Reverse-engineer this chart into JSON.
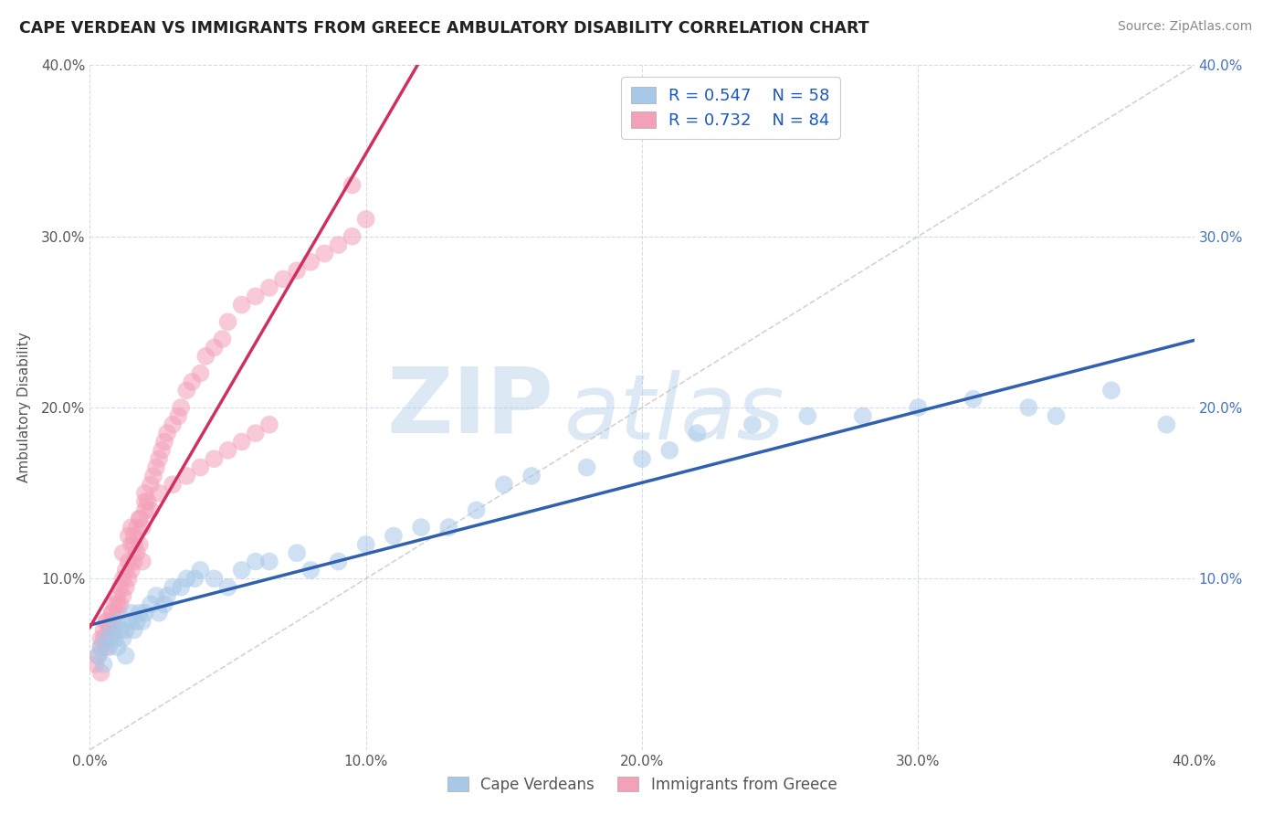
{
  "title": "CAPE VERDEAN VS IMMIGRANTS FROM GREECE AMBULATORY DISABILITY CORRELATION CHART",
  "source": "Source: ZipAtlas.com",
  "ylabel": "Ambulatory Disability",
  "xmin": 0.0,
  "xmax": 0.4,
  "ymin": 0.0,
  "ymax": 0.4,
  "xticks": [
    0.0,
    0.1,
    0.2,
    0.3,
    0.4
  ],
  "yticks": [
    0.0,
    0.1,
    0.2,
    0.3,
    0.4
  ],
  "xtick_labels": [
    "0.0%",
    "10.0%",
    "20.0%",
    "30.0%",
    "40.0%"
  ],
  "ytick_labels_left": [
    "",
    "10.0%",
    "20.0%",
    "30.0%",
    "40.0%"
  ],
  "ytick_labels_right": [
    "",
    "10.0%",
    "20.0%",
    "30.0%",
    "40.0%"
  ],
  "legend_labels": [
    "Cape Verdeans",
    "Immigrants from Greece"
  ],
  "blue_color": "#a8c8e8",
  "pink_color": "#f4a0b8",
  "blue_line_color": "#3060b0",
  "pink_line_color": "#e0306080",
  "ref_line_color": "#c8c8c8",
  "background_color": "#ffffff",
  "grid_color": "#c8d4e8",
  "R_blue": 0.547,
  "N_blue": 58,
  "R_pink": 0.732,
  "N_pink": 84,
  "watermark_zip": "ZIP",
  "watermark_atlas": "atlas",
  "blue_scatter_x": [
    0.003,
    0.004,
    0.005,
    0.006,
    0.007,
    0.008,
    0.009,
    0.01,
    0.01,
    0.011,
    0.012,
    0.013,
    0.013,
    0.014,
    0.015,
    0.016,
    0.017,
    0.018,
    0.019,
    0.02,
    0.022,
    0.024,
    0.025,
    0.027,
    0.028,
    0.03,
    0.033,
    0.035,
    0.038,
    0.04,
    0.045,
    0.05,
    0.055,
    0.06,
    0.065,
    0.075,
    0.08,
    0.09,
    0.1,
    0.11,
    0.12,
    0.13,
    0.14,
    0.15,
    0.16,
    0.18,
    0.2,
    0.21,
    0.22,
    0.24,
    0.26,
    0.28,
    0.3,
    0.32,
    0.34,
    0.35,
    0.37,
    0.39
  ],
  "blue_scatter_y": [
    0.055,
    0.06,
    0.05,
    0.065,
    0.06,
    0.07,
    0.065,
    0.06,
    0.075,
    0.07,
    0.065,
    0.07,
    0.055,
    0.075,
    0.08,
    0.07,
    0.075,
    0.08,
    0.075,
    0.08,
    0.085,
    0.09,
    0.08,
    0.085,
    0.09,
    0.095,
    0.095,
    0.1,
    0.1,
    0.105,
    0.1,
    0.095,
    0.105,
    0.11,
    0.11,
    0.115,
    0.105,
    0.11,
    0.12,
    0.125,
    0.13,
    0.13,
    0.14,
    0.155,
    0.16,
    0.165,
    0.17,
    0.175,
    0.185,
    0.19,
    0.195,
    0.195,
    0.2,
    0.205,
    0.2,
    0.195,
    0.21,
    0.19
  ],
  "pink_scatter_x": [
    0.002,
    0.003,
    0.004,
    0.004,
    0.005,
    0.005,
    0.006,
    0.006,
    0.007,
    0.007,
    0.008,
    0.008,
    0.009,
    0.009,
    0.01,
    0.01,
    0.011,
    0.011,
    0.012,
    0.012,
    0.013,
    0.013,
    0.014,
    0.014,
    0.015,
    0.015,
    0.016,
    0.016,
    0.017,
    0.017,
    0.018,
    0.018,
    0.019,
    0.02,
    0.02,
    0.021,
    0.022,
    0.023,
    0.024,
    0.025,
    0.026,
    0.027,
    0.028,
    0.03,
    0.032,
    0.033,
    0.035,
    0.037,
    0.04,
    0.042,
    0.045,
    0.048,
    0.05,
    0.055,
    0.06,
    0.065,
    0.07,
    0.075,
    0.08,
    0.085,
    0.09,
    0.095,
    0.1,
    0.04,
    0.045,
    0.05,
    0.055,
    0.06,
    0.065,
    0.03,
    0.035,
    0.02,
    0.025,
    0.015,
    0.018,
    0.022,
    0.012,
    0.014,
    0.016,
    0.019,
    0.008,
    0.01,
    0.006,
    0.004
  ],
  "pink_scatter_y": [
    0.05,
    0.055,
    0.06,
    0.045,
    0.065,
    0.07,
    0.06,
    0.075,
    0.07,
    0.065,
    0.08,
    0.075,
    0.085,
    0.07,
    0.08,
    0.09,
    0.085,
    0.095,
    0.09,
    0.1,
    0.095,
    0.105,
    0.1,
    0.11,
    0.105,
    0.12,
    0.11,
    0.125,
    0.115,
    0.13,
    0.12,
    0.135,
    0.13,
    0.14,
    0.15,
    0.145,
    0.155,
    0.16,
    0.165,
    0.17,
    0.175,
    0.18,
    0.185,
    0.19,
    0.195,
    0.2,
    0.21,
    0.215,
    0.22,
    0.23,
    0.235,
    0.24,
    0.25,
    0.26,
    0.265,
    0.27,
    0.275,
    0.28,
    0.285,
    0.29,
    0.295,
    0.3,
    0.31,
    0.165,
    0.17,
    0.175,
    0.18,
    0.185,
    0.19,
    0.155,
    0.16,
    0.145,
    0.15,
    0.13,
    0.135,
    0.14,
    0.115,
    0.125,
    0.12,
    0.11,
    0.08,
    0.085,
    0.075,
    0.065
  ],
  "pink_outlier_x": [
    0.095
  ],
  "pink_outlier_y": [
    0.33
  ]
}
